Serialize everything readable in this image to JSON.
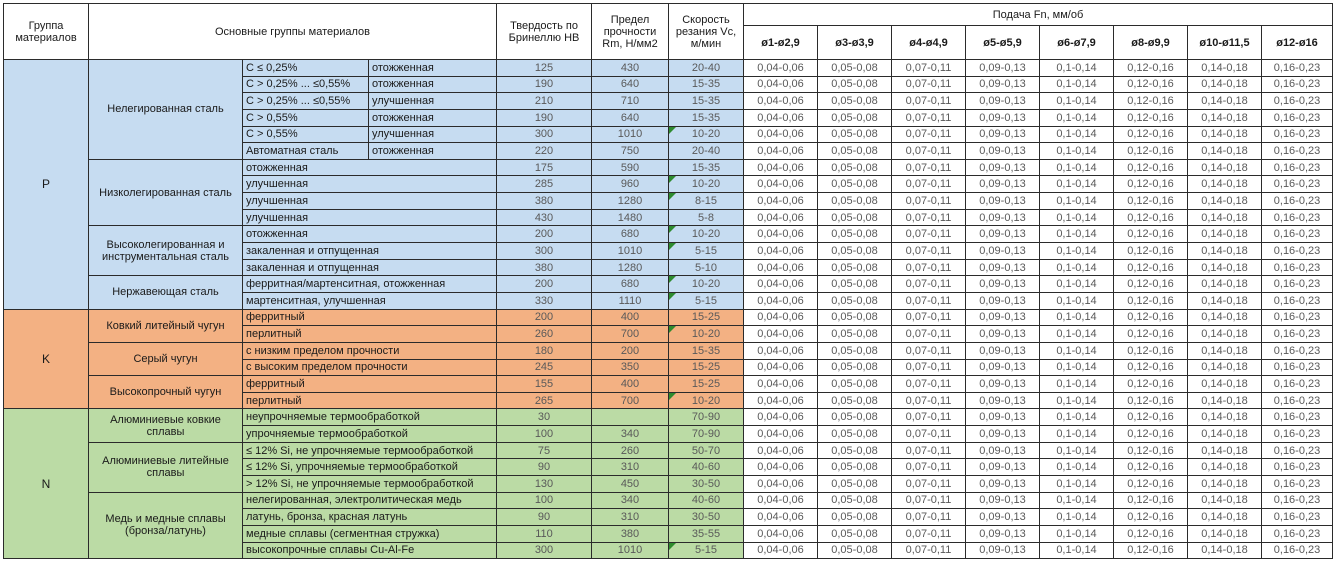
{
  "header": {
    "col_group": "Группа материалов",
    "col_main": "Основные группы материалов",
    "col_hb": "Твердость по Бринеллю HB",
    "col_rm": "Предел прочности Rm, Н/мм2",
    "col_vc": "Скорость резания Vc, м/мин",
    "feed_title": "Подача Fn, мм/об",
    "feed_cols": [
      "ø1-ø2,9",
      "ø3-ø3,9",
      "ø4-ø4,9",
      "ø5-ø5,9",
      "ø6-ø7,9",
      "ø8-ø9,9",
      "ø10-ø11,5",
      "ø12-ø16"
    ]
  },
  "feed_values": [
    "0,04-0,06",
    "0,05-0,08",
    "0,07-0,11",
    "0,09-0,13",
    "0,1-0,14",
    "0,12-0,16",
    "0,14-0,18",
    "0,16-0,23"
  ],
  "colors": {
    "section_p": "#c6dcf1",
    "section_k": "#f3b183",
    "section_n": "#bbdba5",
    "comment_flag": "#2e8b2e"
  },
  "sections": [
    {
      "letter": "P",
      "groups": [
        {
          "name": "Нелегированная сталь",
          "rows": [
            {
              "sub": [
                "C ≤ 0,25%",
                "отожженная"
              ],
              "hb": "125",
              "rm": "430",
              "vc": "20-40",
              "flag": false
            },
            {
              "sub": [
                "C > 0,25% ... ≤0,55%",
                "отожженная"
              ],
              "hb": "190",
              "rm": "640",
              "vc": "15-35",
              "flag": false
            },
            {
              "sub": [
                "C > 0,25% ... ≤0,55%",
                "улучшенная"
              ],
              "hb": "210",
              "rm": "710",
              "vc": "15-35",
              "flag": false
            },
            {
              "sub": [
                "C > 0,55%",
                "отожженная"
              ],
              "hb": "190",
              "rm": "640",
              "vc": "15-35",
              "flag": false
            },
            {
              "sub": [
                "C > 0,55%",
                "улучшенная"
              ],
              "hb": "300",
              "rm": "1010",
              "vc": "10-20",
              "flag": true
            },
            {
              "sub": [
                "Автоматная сталь",
                "отожженная"
              ],
              "hb": "220",
              "rm": "750",
              "vc": "20-40",
              "flag": false
            }
          ]
        },
        {
          "name": "Низколегированная сталь",
          "rows": [
            {
              "sub": [
                "отожженная"
              ],
              "hb": "175",
              "rm": "590",
              "vc": "15-35",
              "flag": false
            },
            {
              "sub": [
                "улучшенная"
              ],
              "hb": "285",
              "rm": "960",
              "vc": "10-20",
              "flag": true
            },
            {
              "sub": [
                "улучшенная"
              ],
              "hb": "380",
              "rm": "1280",
              "vc": "8-15",
              "flag": true
            },
            {
              "sub": [
                "улучшенная"
              ],
              "hb": "430",
              "rm": "1480",
              "vc": "5-8",
              "flag": false
            }
          ]
        },
        {
          "name": "Высоколегированная и инструментальная сталь",
          "rows": [
            {
              "sub": [
                "отожженная"
              ],
              "hb": "200",
              "rm": "680",
              "vc": "10-20",
              "flag": true
            },
            {
              "sub": [
                "закаленная и отпущенная"
              ],
              "hb": "300",
              "rm": "1010",
              "vc": "5-15",
              "flag": true
            },
            {
              "sub": [
                "закаленная и отпущенная"
              ],
              "hb": "380",
              "rm": "1280",
              "vc": "5-10",
              "flag": false
            }
          ]
        },
        {
          "name": "Нержавеющая сталь",
          "rows": [
            {
              "sub": [
                "ферритная/мартенситная, отожженная"
              ],
              "hb": "200",
              "rm": "680",
              "vc": "10-20",
              "flag": true
            },
            {
              "sub": [
                "мартенситная, улучшенная"
              ],
              "hb": "330",
              "rm": "1110",
              "vc": "5-15",
              "flag": true
            }
          ]
        }
      ]
    },
    {
      "letter": "K",
      "groups": [
        {
          "name": "Ковкий литейный чугун",
          "rows": [
            {
              "sub": [
                "ферритный"
              ],
              "hb": "200",
              "rm": "400",
              "vc": "15-25",
              "flag": false
            },
            {
              "sub": [
                "перлитный"
              ],
              "hb": "260",
              "rm": "700",
              "vc": "10-20",
              "flag": true
            }
          ]
        },
        {
          "name": "Серый чугун",
          "rows": [
            {
              "sub": [
                "с низким пределом прочности"
              ],
              "hb": "180",
              "rm": "200",
              "vc": "15-35",
              "flag": false
            },
            {
              "sub": [
                "с высоким пределом прочности"
              ],
              "hb": "245",
              "rm": "350",
              "vc": "15-25",
              "flag": false
            }
          ]
        },
        {
          "name": "Высокопрочный чугун",
          "rows": [
            {
              "sub": [
                "ферритный"
              ],
              "hb": "155",
              "rm": "400",
              "vc": "15-25",
              "flag": false
            },
            {
              "sub": [
                "перлитный"
              ],
              "hb": "265",
              "rm": "700",
              "vc": "10-20",
              "flag": true
            }
          ]
        }
      ]
    },
    {
      "letter": "N",
      "groups": [
        {
          "name": "Алюминиевые ковкие сплавы",
          "rows": [
            {
              "sub": [
                "неупрочняемые термообработкой"
              ],
              "hb": "30",
              "rm": "",
              "vc": "70-90",
              "flag": false
            },
            {
              "sub": [
                "упрочняемые термообработкой"
              ],
              "hb": "100",
              "rm": "340",
              "vc": "70-90",
              "flag": false
            }
          ]
        },
        {
          "name": "Алюминиевые литейные сплавы",
          "rows": [
            {
              "sub": [
                "≤ 12% Si, не упрочняемые термообработкой"
              ],
              "hb": "75",
              "rm": "260",
              "vc": "50-70",
              "flag": false
            },
            {
              "sub": [
                "≤ 12% Si, упрочняемые термообработкой"
              ],
              "hb": "90",
              "rm": "310",
              "vc": "40-60",
              "flag": false
            },
            {
              "sub": [
                "> 12% Si, не упрочняемые термообработкой"
              ],
              "hb": "130",
              "rm": "450",
              "vc": "30-50",
              "flag": false
            }
          ]
        },
        {
          "name": "Медь и медные сплавы (бронза/латунь)",
          "rows": [
            {
              "sub": [
                "нелегированная, электролитическая медь"
              ],
              "hb": "100",
              "rm": "340",
              "vc": "40-60",
              "flag": false
            },
            {
              "sub": [
                "латунь, бронза, красная латунь"
              ],
              "hb": "90",
              "rm": "310",
              "vc": "30-50",
              "flag": false
            },
            {
              "sub": [
                "медные сплавы (сегментная стружка)"
              ],
              "hb": "110",
              "rm": "380",
              "vc": "35-55",
              "flag": false
            },
            {
              "sub": [
                "высокопрочные сплавы Cu-Al-Fe"
              ],
              "hb": "300",
              "rm": "1010",
              "vc": "5-15",
              "flag": true
            }
          ]
        }
      ]
    }
  ]
}
